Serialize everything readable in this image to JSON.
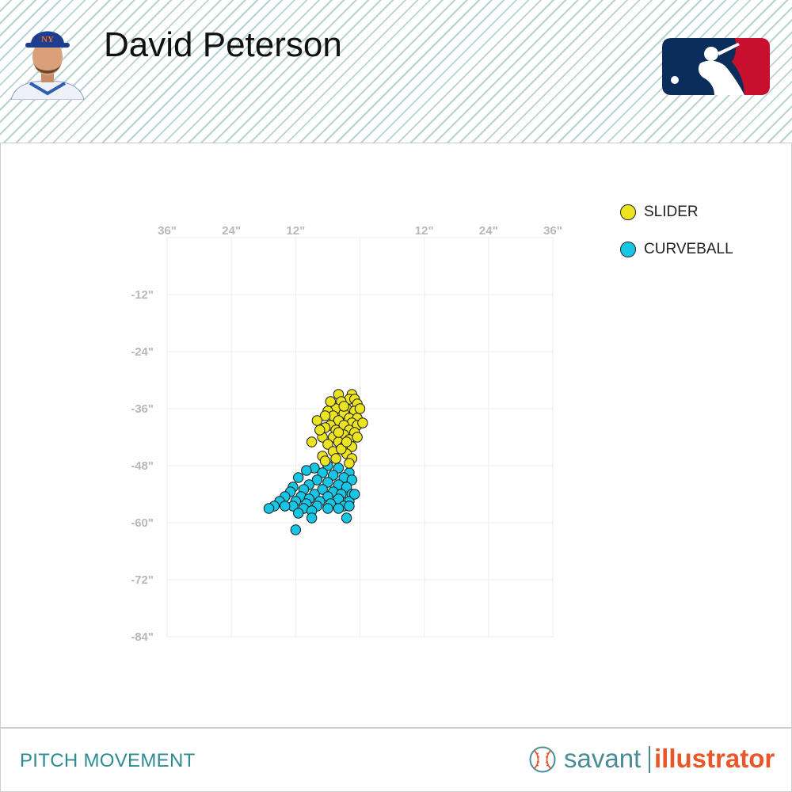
{
  "header": {
    "player_name": "David Peterson"
  },
  "footer": {
    "section_title": "PITCH MOVEMENT",
    "brand_left": "savant",
    "brand_right": "illustrator"
  },
  "colors": {
    "slider": "#ede421",
    "curveball": "#17c6e4",
    "grid": "#ececec",
    "tick_label": "#b8b8b8",
    "brand_teal": "#4a8c96",
    "brand_orange": "#e8562a",
    "mlb_blue": "#0b2d5b",
    "mlb_red": "#c8102e"
  },
  "icons": {
    "avatar": "player-headshot-icon",
    "logo": "mlb-logo-icon",
    "brand": "baseball-icon"
  },
  "legend": [
    {
      "label": "SLIDER",
      "color": "#ede421"
    },
    {
      "label": "CURVEBALL",
      "color": "#17c6e4"
    }
  ],
  "chart_data": {
    "type": "scatter",
    "title": "",
    "xlabel": "",
    "ylabel": "",
    "xlim": [
      -36,
      36
    ],
    "ylim": [
      -84,
      0
    ],
    "x_ticks": [
      -36,
      -24,
      -12,
      12,
      24,
      36
    ],
    "x_tick_labels": [
      "36\"",
      "24\"",
      "12\"",
      "12\"",
      "24\"",
      "36\""
    ],
    "y_ticks": [
      -12,
      -24,
      -36,
      -48,
      -60,
      -72,
      -84
    ],
    "y_tick_labels": [
      "-12\"",
      "-24\"",
      "-36\"",
      "-48\"",
      "-60\"",
      "-72\"",
      "-84\""
    ],
    "grid": true,
    "legend_position": "top-right",
    "series": [
      {
        "name": "SLIDER",
        "color": "#ede421",
        "points": [
          [
            -1.5,
            -33
          ],
          [
            -4,
            -33
          ],
          [
            -2,
            -34
          ],
          [
            -3.5,
            -34.5
          ],
          [
            -1,
            -34
          ],
          [
            -0.5,
            -35
          ],
          [
            -2.5,
            -36
          ],
          [
            -4.5,
            -36
          ],
          [
            -6,
            -36.5
          ],
          [
            -1,
            -36.5
          ],
          [
            -3,
            -37
          ],
          [
            -5,
            -37.5
          ],
          [
            -2,
            -38
          ],
          [
            -0.5,
            -38
          ],
          [
            -6.5,
            -37.5
          ],
          [
            -4,
            -38.5
          ],
          [
            -1.5,
            -39
          ],
          [
            -3,
            -39.5
          ],
          [
            -5.5,
            -39.5
          ],
          [
            -0.5,
            -39.5
          ],
          [
            -2,
            -40.5
          ],
          [
            -4.5,
            -40.5
          ],
          [
            -6.5,
            -40
          ],
          [
            -1,
            -41
          ],
          [
            -3,
            -41.5
          ],
          [
            -5,
            -42
          ],
          [
            -7,
            -42
          ],
          [
            -2,
            -42.5
          ],
          [
            -0.5,
            -42
          ],
          [
            -4,
            -43
          ],
          [
            -6,
            -43.5
          ],
          [
            -3,
            -44
          ],
          [
            -1.5,
            -44
          ],
          [
            -5,
            -45
          ],
          [
            -2.5,
            -45.5
          ],
          [
            -4.5,
            -46.5
          ],
          [
            -1.5,
            -46.5
          ],
          [
            -7,
            -46
          ],
          [
            -6.5,
            -47
          ],
          [
            -2,
            -47.5
          ],
          [
            -3.5,
            -44.5
          ],
          [
            -7.5,
            -40.5
          ],
          [
            -8,
            -38.5
          ],
          [
            0.5,
            -39
          ],
          [
            0,
            -36
          ],
          [
            -3,
            -35.5
          ],
          [
            -5.5,
            -34.5
          ],
          [
            -9,
            -43
          ],
          [
            -4,
            -41
          ],
          [
            -2.5,
            -43
          ]
        ]
      },
      {
        "name": "CURVEBALL",
        "color": "#17c6e4",
        "points": [
          [
            -6,
            -48
          ],
          [
            -8.5,
            -48.5
          ],
          [
            -4,
            -48.5
          ],
          [
            -10,
            -49
          ],
          [
            -2,
            -49.5
          ],
          [
            -7,
            -49.5
          ],
          [
            -5,
            -50
          ],
          [
            -11.5,
            -50.5
          ],
          [
            -3,
            -50.5
          ],
          [
            -8,
            -51
          ],
          [
            -1.5,
            -51
          ],
          [
            -6,
            -51.5
          ],
          [
            -9.5,
            -52
          ],
          [
            -4,
            -52
          ],
          [
            -12.5,
            -52.5
          ],
          [
            -2.5,
            -52.5
          ],
          [
            -7,
            -53
          ],
          [
            -10.5,
            -53
          ],
          [
            -5,
            -53.5
          ],
          [
            -13,
            -53.5
          ],
          [
            -3.5,
            -54
          ],
          [
            -8.5,
            -54
          ],
          [
            -1.5,
            -54
          ],
          [
            -11,
            -54.5
          ],
          [
            -6,
            -54.5
          ],
          [
            -14,
            -54.5
          ],
          [
            -4,
            -55
          ],
          [
            -9.5,
            -55
          ],
          [
            -12,
            -55.5
          ],
          [
            -2,
            -55.5
          ],
          [
            -7.5,
            -55.5
          ],
          [
            -5.5,
            -56
          ],
          [
            -10,
            -56
          ],
          [
            -15,
            -55.5
          ],
          [
            -3,
            -56.5
          ],
          [
            -8,
            -56.5
          ],
          [
            -12.5,
            -56.5
          ],
          [
            -6,
            -57
          ],
          [
            -10.5,
            -57
          ],
          [
            -4,
            -57
          ],
          [
            -2,
            -56.5
          ],
          [
            -14,
            -56.5
          ],
          [
            -16,
            -56.5
          ],
          [
            -17,
            -57
          ],
          [
            -11.5,
            -58
          ],
          [
            -9,
            -57.5
          ],
          [
            -2.5,
            -59
          ],
          [
            -9,
            -59
          ],
          [
            -12,
            -61.5
          ],
          [
            -1,
            -54
          ]
        ]
      }
    ]
  }
}
